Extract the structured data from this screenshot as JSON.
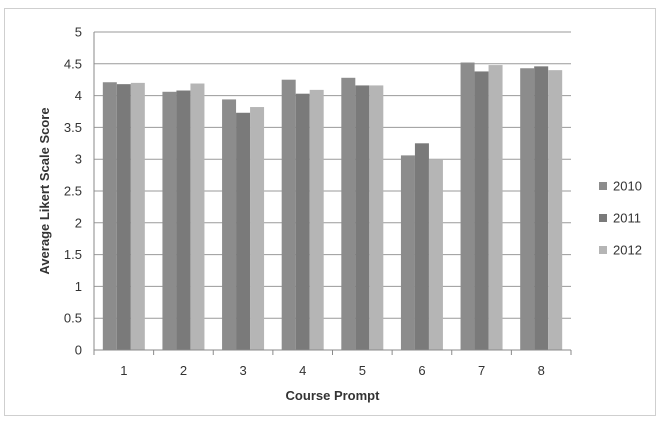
{
  "chart_data": {
    "type": "bar",
    "title": "",
    "xlabel": "Course Prompt",
    "ylabel": "Average Likert Scale Score",
    "categories": [
      "1",
      "2",
      "3",
      "4",
      "5",
      "6",
      "7",
      "8"
    ],
    "series": [
      {
        "name": "2010",
        "color": "#8c8c8c",
        "values": [
          4.21,
          4.06,
          3.94,
          4.25,
          4.28,
          3.06,
          4.52,
          4.43
        ]
      },
      {
        "name": "2011",
        "color": "#7a7a7a",
        "values": [
          4.18,
          4.08,
          3.73,
          4.03,
          4.16,
          3.25,
          4.38,
          4.46
        ]
      },
      {
        "name": "2012",
        "color": "#b5b5b5",
        "values": [
          4.2,
          4.19,
          3.82,
          4.09,
          4.16,
          3.0,
          4.48,
          4.4
        ]
      }
    ],
    "ylim": [
      0,
      5
    ],
    "yticks": [
      "0",
      "0.5",
      "1",
      "1.5",
      "2",
      "2.5",
      "3",
      "3.5",
      "4",
      "4.5",
      "5"
    ],
    "grid": true,
    "legend_position": "right"
  }
}
